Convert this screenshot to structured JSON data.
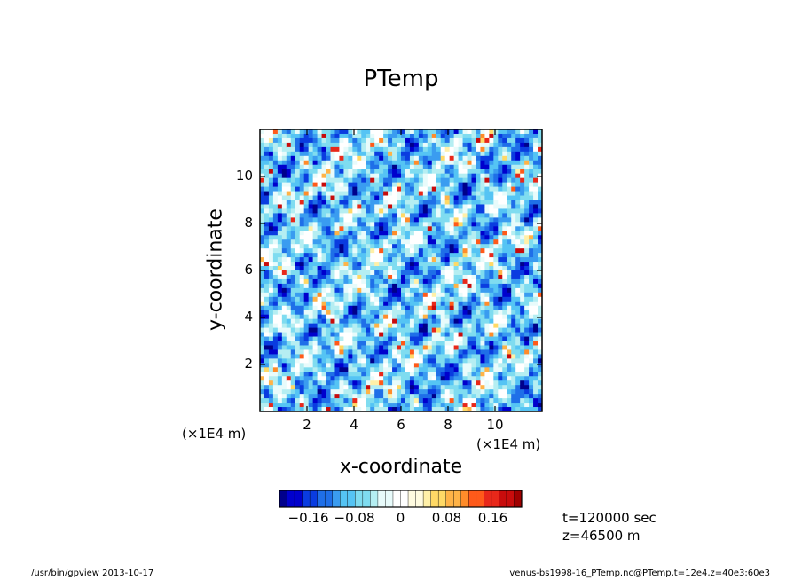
{
  "chart_data": {
    "type": "heatmap",
    "title": "PTemp",
    "xlabel": "x-coordinate",
    "ylabel": "y-coordinate",
    "x_unit": "(×1E4 m)",
    "y_unit": "(×1E4 m)",
    "x_ticks": [
      "2",
      "4",
      "6",
      "8",
      "10"
    ],
    "y_ticks": [
      "2",
      "4",
      "6",
      "8",
      "10"
    ],
    "xlim": [
      0,
      12
    ],
    "ylim": [
      0,
      12
    ],
    "colorbar": {
      "ticks": [
        "−0.16",
        "−0.08",
        "0",
        "0.08",
        "0.16"
      ],
      "range": [
        -0.21,
        0.21
      ],
      "colors": [
        "#00008b",
        "#0000cd",
        "#0a3ce0",
        "#1f6fe8",
        "#3a9cf0",
        "#55c4f4",
        "#7fdcf0",
        "#b5eef2",
        "#e8fbfb",
        "#ffffff",
        "#fffbe0",
        "#fff0a8",
        "#ffd966",
        "#ffb347",
        "#ff8c2a",
        "#ff5a1a",
        "#e8281a",
        "#c80c0c",
        "#a00000"
      ]
    },
    "time_info": [
      "t=120000 sec",
      "z=46500 m"
    ]
  },
  "footer": {
    "left": "/usr/bin/gpview 2013-10-17",
    "right": "venus-bs1998-16_PTemp.nc@PTemp,t=12e4,z=40e3:60e3"
  }
}
